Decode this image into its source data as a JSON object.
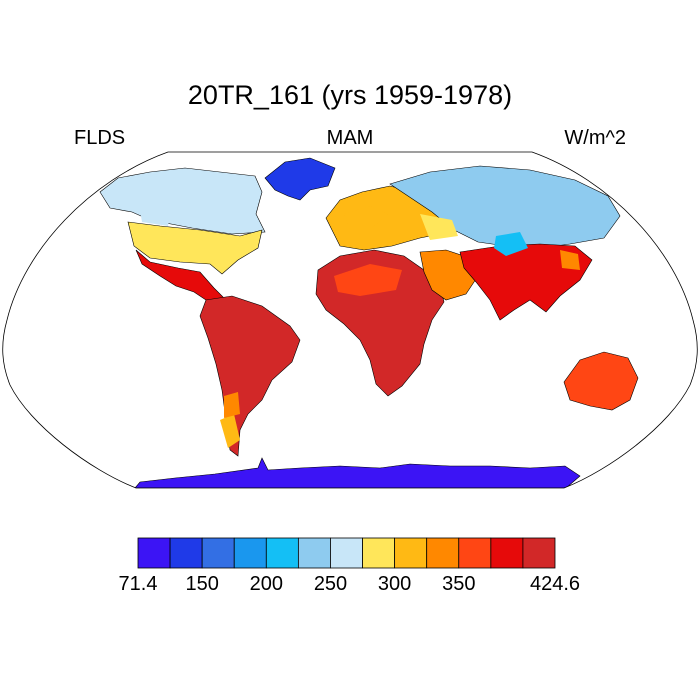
{
  "title": "20TR_161 (yrs 1959-1978)",
  "variable": "FLDS",
  "season": "MAM",
  "units": "W/m^2",
  "colors": {
    "ocean": "#ffffff",
    "coastline": "#000000",
    "frame": "#000000"
  },
  "colorbar": {
    "min_label": "71.4",
    "max_label": "424.6",
    "ticks": [
      "150",
      "200",
      "250",
      "300",
      "350"
    ],
    "bins": [
      "#3c14f5",
      "#1f3ae8",
      "#336fe4",
      "#1a97ee",
      "#14bff5",
      "#8ecbef",
      "#c8e6f8",
      "#ffe65a",
      "#ffb914",
      "#ff8800",
      "#ff4614",
      "#e60a0a",
      "#d22828"
    ]
  },
  "map": {
    "projection": "robinson",
    "regions": [
      {
        "name": "antarctica",
        "color": "#3c14f5"
      },
      {
        "name": "greenland",
        "color": "#1f3ae8"
      },
      {
        "name": "canada",
        "color": "#c8e6f8"
      },
      {
        "name": "usa",
        "color": "#ffe65a"
      },
      {
        "name": "mexico-central-america",
        "color": "#e60a0a"
      },
      {
        "name": "south-america",
        "color": "#d22828"
      },
      {
        "name": "europe",
        "color": "#ffb914"
      },
      {
        "name": "siberia",
        "color": "#8ecbef"
      },
      {
        "name": "africa",
        "color": "#d22828"
      },
      {
        "name": "middle-east",
        "color": "#ff8800"
      },
      {
        "name": "india-se-asia",
        "color": "#e60a0a"
      },
      {
        "name": "australia",
        "color": "#ff4614"
      }
    ]
  }
}
